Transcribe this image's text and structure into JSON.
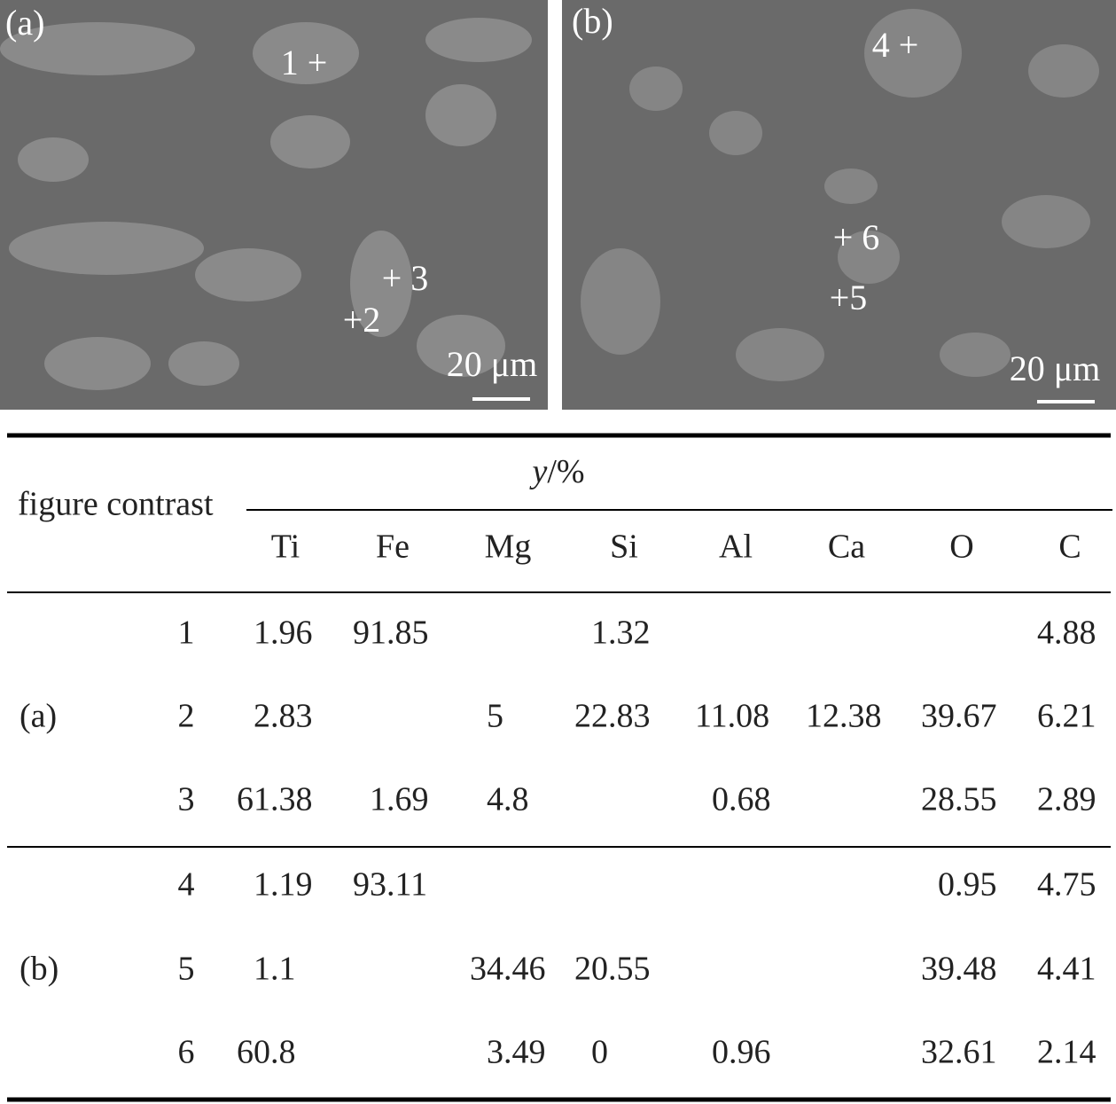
{
  "figure": {
    "panels": [
      {
        "label": "(a)",
        "scale_bar": "20 μm",
        "points": [
          "1 +",
          "+2",
          "+ 3"
        ]
      },
      {
        "label": "(b)",
        "scale_bar": "20 μm",
        "points": [
          "4 +",
          "+5",
          "+ 6"
        ]
      }
    ]
  },
  "table": {
    "row_header": "figure contrast",
    "unit_symbol": "y",
    "unit": "/%",
    "columns": [
      "Ti",
      "Fe",
      "Mg",
      "Si",
      "Al",
      "Ca",
      "O",
      "C"
    ],
    "groups": [
      {
        "label": "(a)",
        "rows": [
          {
            "point": "1",
            "cells": [
              "1.96",
              "91.85",
              null,
              "1.32",
              null,
              null,
              null,
              "4.88"
            ]
          },
          {
            "point": "2",
            "cells": [
              "2.83",
              null,
              "5",
              "22.83",
              "11.08",
              "12.38",
              "39.67",
              "6.21"
            ]
          },
          {
            "point": "3",
            "cells": [
              "61.38",
              "1.69",
              "4.8",
              null,
              "0.68",
              null,
              "28.55",
              "2.89"
            ]
          }
        ]
      },
      {
        "label": "(b)",
        "rows": [
          {
            "point": "4",
            "cells": [
              "1.19",
              "93.11",
              null,
              null,
              null,
              null,
              "0.95",
              "4.75"
            ]
          },
          {
            "point": "5",
            "cells": [
              "1.1",
              null,
              "34.46",
              "20.55",
              null,
              null,
              "39.48",
              "4.41"
            ]
          },
          {
            "point": "6",
            "cells": [
              "60.8",
              null,
              "3.49",
              "0",
              "0.96",
              null,
              "32.61",
              "2.14"
            ]
          }
        ]
      }
    ]
  }
}
